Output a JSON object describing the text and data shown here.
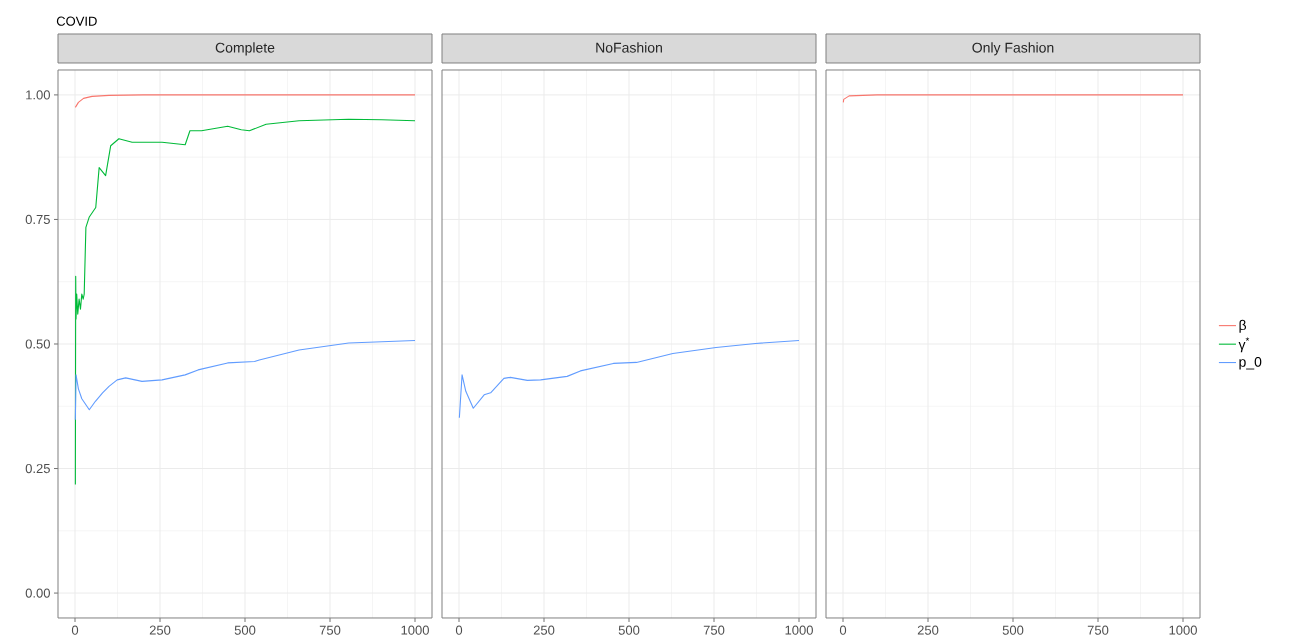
{
  "chart_data": [
    {
      "type": "line",
      "title": "Complete",
      "annotations": [
        "COVID"
      ],
      "xlim": [
        -50,
        1050
      ],
      "ylim": [
        -0.05,
        1.05
      ],
      "xticks": [
        0,
        250,
        500,
        750,
        1000
      ],
      "yticks": [
        {
          "value": 0,
          "label": "0.00"
        },
        {
          "value": 0.25,
          "label": "0.25"
        },
        {
          "value": 0.5,
          "label": "0.50"
        },
        {
          "value": 0.75,
          "label": "0.75"
        },
        {
          "value": 1,
          "label": "1.00"
        }
      ],
      "grid": true,
      "legend": "right",
      "series": [
        {
          "name": "β",
          "color": "#f8766d",
          "x": [
            1,
            10,
            25,
            50,
            100,
            200,
            1000
          ],
          "values": [
            0.975,
            0.985,
            0.993,
            0.997,
            0.999,
            1.0,
            1.0
          ]
        },
        {
          "name": "γ$^{*}$",
          "color": "#00ba38",
          "x": [
            1,
            2,
            3,
            5,
            8,
            12,
            16,
            20,
            24,
            27,
            32,
            42,
            61,
            71,
            90,
            105,
            129,
            168,
            256,
            324,
            338,
            372,
            449,
            489,
            513,
            562,
            659,
            805,
            902,
            1000
          ],
          "values": [
            0.218,
            0.636,
            0.55,
            0.6,
            0.56,
            0.59,
            0.57,
            0.6,
            0.59,
            0.6,
            0.734,
            0.755,
            0.774,
            0.854,
            0.838,
            0.898,
            0.912,
            0.905,
            0.905,
            0.9,
            0.928,
            0.928,
            0.937,
            0.93,
            0.928,
            0.941,
            0.948,
            0.951,
            0.95,
            0.948
          ]
        },
        {
          "name": "p_0",
          "color": "#619cff",
          "x": [
            1,
            3,
            10,
            20,
            42,
            60,
            81,
            100,
            124,
            149,
            197,
            256,
            324,
            362,
            449,
            528,
            542,
            659,
            805,
            1000
          ],
          "values": [
            0.348,
            0.438,
            0.41,
            0.39,
            0.368,
            0.385,
            0.402,
            0.415,
            0.428,
            0.432,
            0.425,
            0.428,
            0.438,
            0.448,
            0.462,
            0.465,
            0.468,
            0.488,
            0.502,
            0.507
          ]
        }
      ]
    },
    {
      "type": "line",
      "title": "NoFashion",
      "xlim": [
        -50,
        1050
      ],
      "ylim": [
        -0.05,
        1.05
      ],
      "xticks": [
        0,
        250,
        500,
        750,
        1000
      ],
      "yticks": [
        0,
        0.25,
        0.5,
        0.75,
        1
      ],
      "grid": true,
      "tick_labels": "x",
      "series": [
        {
          "color": "#619cff",
          "x": [
            1,
            9,
            20,
            42,
            74,
            93,
            132,
            151,
            201,
            240,
            318,
            357,
            454,
            522,
            629,
            756,
            872,
            1000
          ],
          "values": [
            0.352,
            0.438,
            0.405,
            0.371,
            0.398,
            0.402,
            0.431,
            0.433,
            0.427,
            0.428,
            0.435,
            0.446,
            0.461,
            0.463,
            0.481,
            0.493,
            0.501,
            0.507
          ]
        }
      ]
    },
    {
      "type": "line",
      "title": "Only Fashion",
      "xlim": [
        -50,
        1050
      ],
      "ylim": [
        -0.05,
        1.05
      ],
      "xticks": [
        0,
        250,
        500,
        750,
        1000
      ],
      "yticks": [
        0,
        0.25,
        0.5,
        0.75,
        1
      ],
      "grid": true,
      "tick_labels": "x",
      "series": [
        {
          "color": "#f8766d",
          "x": [
            1,
            2,
            18,
            100,
            1000
          ],
          "values": [
            0.985,
            0.991,
            0.998,
            1.0,
            1.0
          ]
        }
      ]
    }
  ]
}
